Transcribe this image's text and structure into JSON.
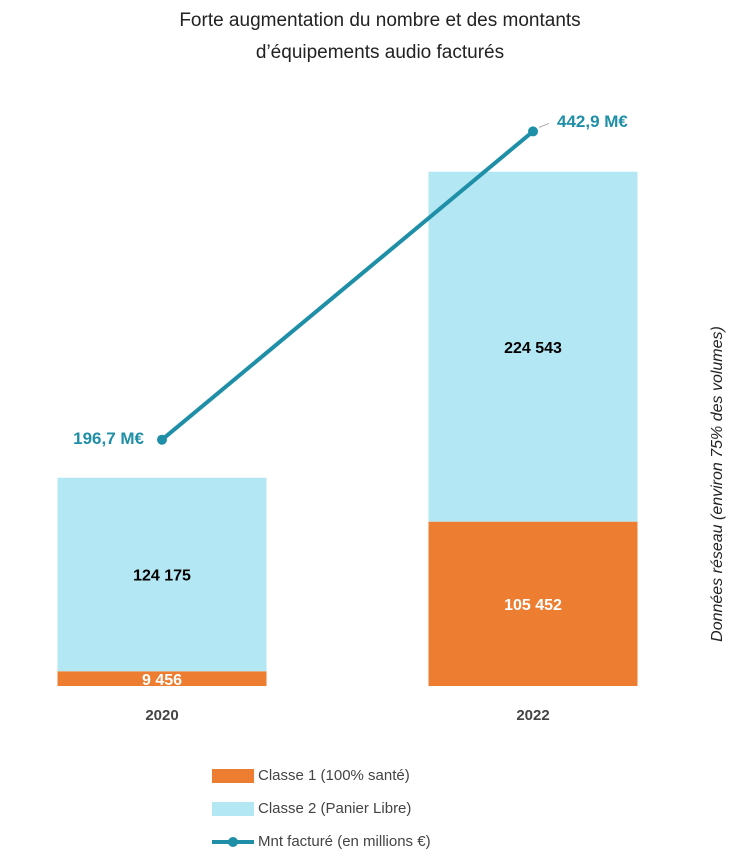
{
  "chart_data": {
    "type": "stacked_bar_line",
    "title": "Forte augmentation du nombre et des montants",
    "subtitle": "d’équipements audio facturés",
    "categories": [
      "2020",
      "2022"
    ],
    "series": [
      {
        "name": "Classe 1 (100% santé)",
        "color": "#ed7d31",
        "values": [
          9456,
          105452
        ],
        "value_labels": [
          "9 456",
          "105 452"
        ],
        "label_color": "#ffffff"
      },
      {
        "name": "Classe 2 (Panier Libre)",
        "color": "#b3e7f3",
        "values": [
          124175,
          224543
        ],
        "value_labels": [
          "124 175",
          "224 543"
        ],
        "label_color": "#000000"
      },
      {
        "name": "Mnt facturé (en millions €)",
        "color": "#1f8fa8",
        "axis": "y2",
        "values": [
          196.7,
          442.9
        ],
        "value_labels": [
          "196,7 M€",
          "442,9 M€"
        ]
      }
    ],
    "ylim": [
      0,
      376000
    ],
    "y2lim": [
      0,
      468
    ],
    "annotation": "Données réseau (environ 75% des volumes)"
  }
}
